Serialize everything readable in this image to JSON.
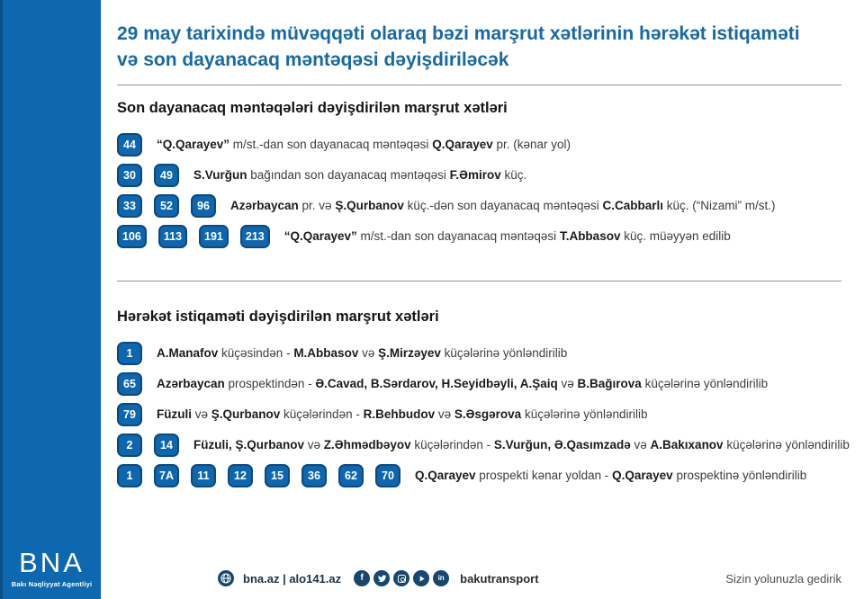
{
  "title": "29 may tarixində müvəqqəti olaraq bəzi marşrut xətlərinin hərəkət istiqaməti və son dayanacaq məntəqəsi dəyişdiriləcək",
  "colors": {
    "sidebar_blue": "#0d68b0",
    "badge_blue": "#0e67ae",
    "badge_border": "#0a4a7f",
    "title_blue": "#1769a6",
    "icon_navy": "#17476e"
  },
  "sections": [
    {
      "heading": "Son dayanacaq məntəqələri dəyişdirilən marşrut xətləri",
      "rows": [
        {
          "badges": [
            "44"
          ],
          "segments": [
            {
              "t": "“Q.Qarayev”",
              "b": true
            },
            {
              "t": " m/st.-dan son dayanacaq məntəqəsi ",
              "b": false
            },
            {
              "t": "Q.Qarayev",
              "b": true
            },
            {
              "t": " pr. (kənar yol)",
              "b": false
            }
          ]
        },
        {
          "badges": [
            "30",
            "49"
          ],
          "segments": [
            {
              "t": "S.Vurğun",
              "b": true
            },
            {
              "t": " bağından son dayanacaq məntəqəsi ",
              "b": false
            },
            {
              "t": "F.Əmirov",
              "b": true
            },
            {
              "t": " küç.",
              "b": false
            }
          ]
        },
        {
          "badges": [
            "33",
            "52",
            "96"
          ],
          "segments": [
            {
              "t": "Azərbaycan",
              "b": true
            },
            {
              "t": " pr. və ",
              "b": false
            },
            {
              "t": "Ş.Qurbanov",
              "b": true
            },
            {
              "t": " küç.-dən son dayanacaq məntəqəsi ",
              "b": false
            },
            {
              "t": "C.Cabbarlı",
              "b": true
            },
            {
              "t": " küç. (“Nizami” m/st.)",
              "b": false
            }
          ]
        },
        {
          "badges": [
            "106",
            "113",
            "191",
            "213"
          ],
          "segments": [
            {
              "t": "“Q.Qarayev”",
              "b": true
            },
            {
              "t": " m/st.-dan son dayanacaq məntəqəsi ",
              "b": false
            },
            {
              "t": "T.Abbasov",
              "b": true
            },
            {
              "t": " küç. müəyyən edilib",
              "b": false
            }
          ]
        }
      ]
    },
    {
      "heading": "Hərəkət istiqaməti dəyişdirilən marşrut xətləri",
      "rows": [
        {
          "badges": [
            "1"
          ],
          "segments": [
            {
              "t": "A.Manafov",
              "b": true
            },
            {
              "t": " küçəsindən - ",
              "b": false
            },
            {
              "t": "M.Abbasov",
              "b": true
            },
            {
              "t": " və ",
              "b": false
            },
            {
              "t": "Ş.Mirzəyev",
              "b": true
            },
            {
              "t": " küçələrinə yönləndirilib",
              "b": false
            }
          ]
        },
        {
          "badges": [
            "65"
          ],
          "segments": [
            {
              "t": "Azərbaycan",
              "b": true
            },
            {
              "t": " prospektindən - ",
              "b": false
            },
            {
              "t": "Ə.Cavad, B.Sərdarov, H.Seyidbəyli, A.Şaiq",
              "b": true
            },
            {
              "t": " və ",
              "b": false
            },
            {
              "t": "B.Bağırova",
              "b": true
            },
            {
              "t": " küçələrinə yönləndirilib",
              "b": false
            }
          ]
        },
        {
          "badges": [
            "79"
          ],
          "segments": [
            {
              "t": "Füzuli",
              "b": true
            },
            {
              "t": " və ",
              "b": false
            },
            {
              "t": "Ş.Qurbanov",
              "b": true
            },
            {
              "t": " küçələrindən - ",
              "b": false
            },
            {
              "t": "R.Behbudov",
              "b": true
            },
            {
              "t": " və ",
              "b": false
            },
            {
              "t": "S.Əsgərova",
              "b": true
            },
            {
              "t": " küçələrinə yönləndirilib",
              "b": false
            }
          ]
        },
        {
          "badges": [
            "2",
            "14"
          ],
          "segments": [
            {
              "t": "Füzuli, Ş.Qurbanov",
              "b": true
            },
            {
              "t": " və ",
              "b": false
            },
            {
              "t": "Z.Əhmədbəyov",
              "b": true
            },
            {
              "t": " küçələrindən - ",
              "b": false
            },
            {
              "t": "S.Vurğun, Ə.Qasımzadə",
              "b": true
            },
            {
              "t": " və ",
              "b": false
            },
            {
              "t": "A.Bakıxanov",
              "b": true
            },
            {
              "t": " küçələrinə yönləndirilib",
              "b": false
            }
          ]
        },
        {
          "badges": [
            "1",
            "7A",
            "11",
            "12",
            "15",
            "36",
            "62",
            "70"
          ],
          "segments": [
            {
              "t": "Q.Qarayev",
              "b": true
            },
            {
              "t": " prospekti kənar yoldan - ",
              "b": false
            },
            {
              "t": "Q.Qarayev",
              "b": true
            },
            {
              "t": " prospektinə yönləndirilib",
              "b": false
            }
          ]
        }
      ]
    }
  ],
  "logo": {
    "text": "BNA",
    "subtitle": "Bakı Nəqliyyat Agentliyi"
  },
  "footer": {
    "links": "bna.az | alo141.az",
    "social_handle": "bakutransport",
    "tagline": "Sizin yolunuzla gedirik",
    "icons": [
      "globe-icon",
      "facebook-icon",
      "twitter-icon",
      "instagram-icon",
      "youtube-icon",
      "linkedin-icon"
    ]
  }
}
